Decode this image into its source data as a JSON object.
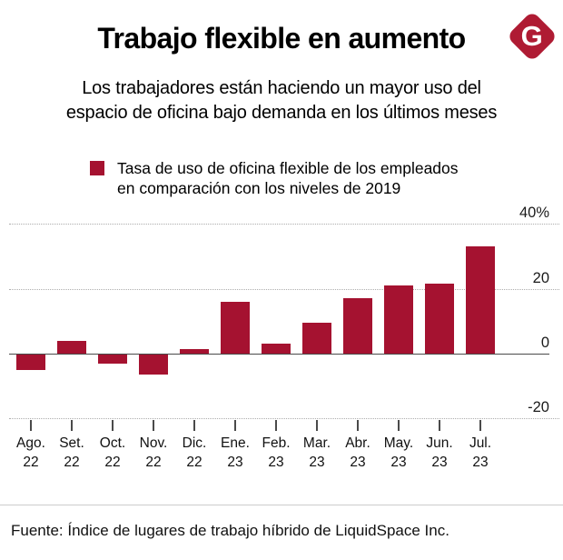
{
  "header": {
    "title": "Trabajo flexible en aumento",
    "subtitle_line1": "Los trabajadores están haciendo un mayor uso del",
    "subtitle_line2": "espacio de oficina bajo demanda en los últimos meses",
    "logo_letter": "G"
  },
  "legend": {
    "line1": "Tasa de uso de oficina flexible de los empleados",
    "line2": "en comparación con los niveles de 2019"
  },
  "chart_data": {
    "type": "bar",
    "title": "Trabajo flexible en aumento",
    "subtitle": "Los trabajadores están haciendo un mayor uso del espacio de oficina bajo demanda en los últimos meses",
    "legend_label": "Tasa de uso de oficina flexible de los empleados en comparación con los niveles de 2019",
    "categories": [
      "Ago. 22",
      "Set. 22",
      "Oct. 22",
      "Nov. 22",
      "Dic. 22",
      "Ene. 23",
      "Feb. 23",
      "Mar. 23",
      "Abr. 23",
      "May. 23",
      "Jun. 23",
      "Jul. 23"
    ],
    "values": [
      -5,
      4,
      -3,
      -6.5,
      1.5,
      16,
      3,
      9.5,
      17,
      21,
      21.5,
      33
    ],
    "unit": "%",
    "xlabel": "",
    "ylabel": "",
    "ylim": [
      -26,
      46
    ],
    "y_axis_ticks": [
      {
        "label": "40%",
        "value": 40
      },
      {
        "label": "20",
        "value": 20
      },
      {
        "label": "0",
        "value": 0
      },
      {
        "label": "-20",
        "value": -20
      }
    ],
    "gridlines": "horizontal dotted, solid zero line",
    "legend_position": "top-left",
    "y_labels_position": "right, above gridlines"
  },
  "colors": {
    "bar": "#A51230",
    "logo": "#AF1B33",
    "grid_dotted": "#ADADAD",
    "axis": "#4A4A4A",
    "divider": "#CCCCCC"
  },
  "footer": {
    "source": "Fuente: Índice de lugares de trabajo híbrido de LiquidSpace Inc."
  }
}
